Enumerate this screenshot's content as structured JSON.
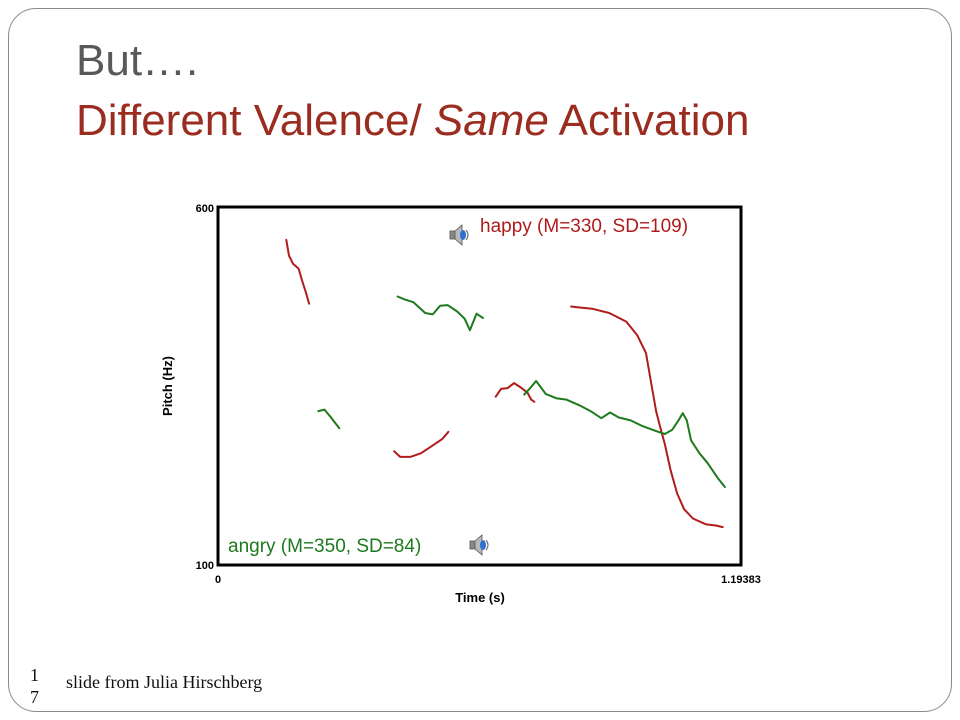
{
  "slide": {
    "title_line1": "But….",
    "title_line2_part1": "Different Valence/ ",
    "title_line2_italic": "Same",
    "title_line2_part2": " Activation",
    "credit": "slide from Julia Hirschberg",
    "page_number": "17"
  },
  "colors": {
    "happy": "#b01c1c",
    "angry": "#1e7a1e",
    "frame": "#000000",
    "title_red": "#9b2d20",
    "title_gray": "#595959"
  },
  "chart_data": {
    "type": "line",
    "title": "",
    "xlabel": "Time (s)",
    "ylabel": "Pitch (Hz)",
    "xlim": [
      0,
      1.19383
    ],
    "ylim": [
      100,
      600
    ],
    "x_tick_labels": [
      "0",
      "1.19383"
    ],
    "y_tick_labels": [
      "100",
      "600"
    ],
    "grid": false,
    "legend": "none",
    "annotations": [
      {
        "label": "happy (M=330, SD=109)",
        "series": "happy",
        "position": "top-right",
        "icon": "speaker-icon"
      },
      {
        "label": "angry (M=350, SD=84)",
        "series": "angry",
        "position": "bottom-left",
        "icon": "speaker-icon"
      }
    ],
    "series": [
      {
        "name": "happy",
        "segments": [
          [
            [
              0.156,
              554
            ],
            [
              0.162,
              532
            ],
            [
              0.171,
              521
            ],
            [
              0.184,
              514
            ],
            [
              0.192,
              497
            ],
            [
              0.2,
              482
            ],
            [
              0.208,
              465
            ]
          ],
          [
            [
              0.402,
              259
            ],
            [
              0.416,
              251
            ],
            [
              0.439,
              251
            ],
            [
              0.463,
              256
            ],
            [
              0.488,
              266
            ],
            [
              0.512,
              276
            ],
            [
              0.526,
              286
            ]
          ],
          [
            [
              0.634,
              335
            ],
            [
              0.646,
              346
            ],
            [
              0.661,
              347
            ],
            [
              0.676,
              354
            ],
            [
              0.691,
              348
            ],
            [
              0.706,
              341
            ],
            [
              0.715,
              331
            ],
            [
              0.722,
              328
            ]
          ],
          [
            [
              0.806,
              461
            ],
            [
              0.82,
              460
            ],
            [
              0.854,
              458
            ],
            [
              0.893,
              452
            ],
            [
              0.932,
              440
            ],
            [
              0.957,
              421
            ],
            [
              0.977,
              396
            ],
            [
              0.988,
              357
            ],
            [
              1.0,
              315
            ],
            [
              1.01,
              291
            ],
            [
              1.02,
              269
            ],
            [
              1.033,
              233
            ],
            [
              1.048,
              200
            ],
            [
              1.064,
              178
            ],
            [
              1.084,
              165
            ],
            [
              1.113,
              157
            ],
            [
              1.138,
              155
            ],
            [
              1.152,
              153
            ]
          ]
        ]
      },
      {
        "name": "angry",
        "segments": [
          [
            [
              0.229,
              315
            ],
            [
              0.243,
              317
            ],
            [
              0.258,
              306
            ],
            [
              0.277,
              291
            ]
          ],
          [
            [
              0.41,
              475
            ],
            [
              0.426,
              471
            ],
            [
              0.446,
              467
            ],
            [
              0.473,
              452
            ],
            [
              0.49,
              450
            ],
            [
              0.507,
              462
            ],
            [
              0.524,
              463
            ],
            [
              0.546,
              454
            ],
            [
              0.563,
              444
            ],
            [
              0.575,
              428
            ],
            [
              0.59,
              451
            ],
            [
              0.605,
              445
            ]
          ],
          [
            [
              0.699,
              338
            ],
            [
              0.714,
              348
            ],
            [
              0.726,
              357
            ],
            [
              0.748,
              339
            ],
            [
              0.772,
              333
            ],
            [
              0.795,
              331
            ],
            [
              0.825,
              323
            ],
            [
              0.853,
              314
            ],
            [
              0.875,
              305
            ],
            [
              0.895,
              313
            ],
            [
              0.915,
              306
            ],
            [
              0.942,
              302
            ],
            [
              0.969,
              294
            ],
            [
              0.996,
              288
            ],
            [
              1.02,
              283
            ],
            [
              1.037,
              289
            ],
            [
              1.052,
              303
            ],
            [
              1.061,
              312
            ],
            [
              1.07,
              302
            ],
            [
              1.08,
              274
            ],
            [
              1.099,
              256
            ],
            [
              1.118,
              242
            ],
            [
              1.14,
              222
            ],
            [
              1.157,
              209
            ]
          ]
        ]
      }
    ]
  }
}
